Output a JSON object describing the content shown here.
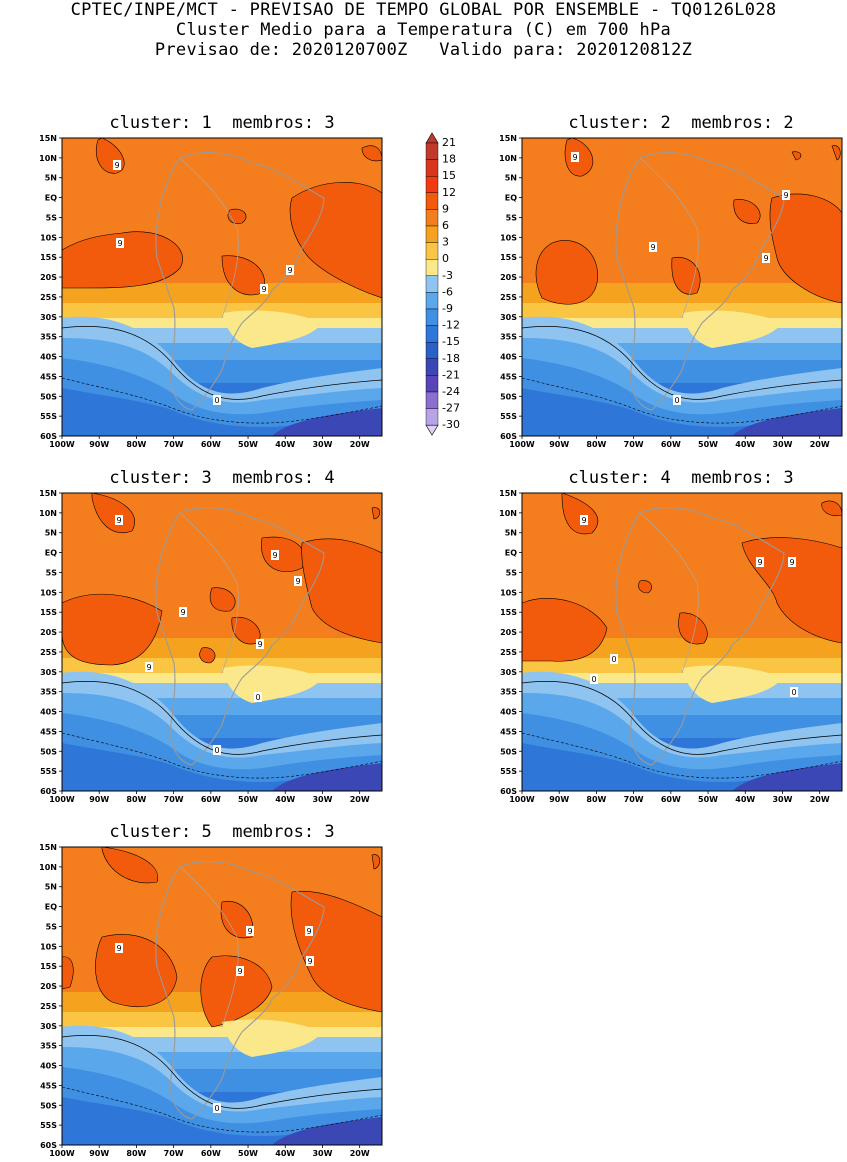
{
  "header": {
    "line1": "CPTEC/INPE/MCT - PREVISAO DE TEMPO GLOBAL POR ENSEMBLE - TQ0126L028",
    "line2": "Cluster Medio para a Temperatura (C) em 700 hPa",
    "line3": "Previsao de: 2020120700Z   Valido para: 2020120812Z"
  },
  "panels": [
    {
      "title": "cluster: 1  membros: 3"
    },
    {
      "title": "cluster: 2  membros: 2"
    },
    {
      "title": "cluster: 3  membros: 4"
    },
    {
      "title": "cluster: 4  membros: 3"
    },
    {
      "title": "cluster: 5  membros: 3"
    }
  ],
  "axes": {
    "lat_labels": [
      "15N",
      "10N",
      "5N",
      "EQ",
      "5S",
      "10S",
      "15S",
      "20S",
      "25S",
      "30S",
      "35S",
      "40S",
      "45S",
      "50S",
      "55S",
      "60S"
    ],
    "lon_labels": [
      "100W",
      "90W",
      "80W",
      "70W",
      "60W",
      "50W",
      "40W",
      "30W",
      "20W"
    ]
  },
  "colorbar": {
    "labels": [
      "21",
      "18",
      "15",
      "12",
      "9",
      "6",
      "3",
      "0",
      "-3",
      "-6",
      "-9",
      "-12",
      "-15",
      "-18",
      "-21",
      "-24",
      "-27",
      "-30"
    ],
    "colors": [
      "#c0392b",
      "#d9361e",
      "#ef3b0f",
      "#f25a0c",
      "#f47e1d",
      "#f5a21f",
      "#f9c542",
      "#fbe88a",
      "#8fc3f0",
      "#5aa7ec",
      "#3f8fe3",
      "#2e76d8",
      "#2b5fc9",
      "#3a47b5",
      "#5b43b8",
      "#8a6fd0",
      "#b7a3e6",
      "#ddd2f5"
    ],
    "max_label": "21",
    "min_label": "-30"
  },
  "contour_labels": {
    "p1": [
      "9",
      "9",
      "9",
      "9",
      "0"
    ],
    "p2": [
      "9",
      "9",
      "9",
      "9",
      "0"
    ],
    "p3": [
      "9",
      "9",
      "9",
      "9",
      "9",
      "9",
      "0",
      "0"
    ],
    "p4": [
      "9",
      "9",
      "9",
      "9",
      "0",
      "0",
      "0"
    ],
    "p5": [
      "9",
      "9",
      "9",
      "9",
      "9",
      "0"
    ]
  }
}
